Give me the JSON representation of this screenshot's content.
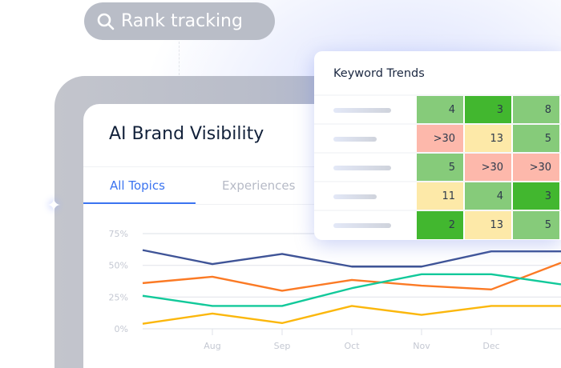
{
  "search_pill": {
    "label": "Rank tracking",
    "icon": "search-icon"
  },
  "visibility_card": {
    "title": "AI Brand Visibility",
    "tabs": [
      {
        "label": "All Topics",
        "active": true
      },
      {
        "label": "Experiences",
        "active": false
      }
    ]
  },
  "keyword_trends": {
    "title": "Keyword Trends",
    "colors": {
      "dark_green": "#42b72f",
      "light_green": "#86cb7a",
      "yellow": "#fde9a8",
      "red": "#fdb8ab"
    },
    "rows": [
      {
        "cells": [
          {
            "v": "4",
            "c": "light_green"
          },
          {
            "v": "3",
            "c": "dark_green"
          },
          {
            "v": "8",
            "c": "light_green"
          }
        ]
      },
      {
        "cells": [
          {
            "v": ">30",
            "c": "red"
          },
          {
            "v": "13",
            "c": "yellow"
          },
          {
            "v": "5",
            "c": "light_green"
          }
        ]
      },
      {
        "cells": [
          {
            "v": "5",
            "c": "light_green"
          },
          {
            "v": ">30",
            "c": "red"
          },
          {
            "v": ">30",
            "c": "red"
          }
        ]
      },
      {
        "cells": [
          {
            "v": "11",
            "c": "yellow"
          },
          {
            "v": "4",
            "c": "light_green"
          },
          {
            "v": "3",
            "c": "dark_green"
          }
        ]
      },
      {
        "cells": [
          {
            "v": "2",
            "c": "dark_green"
          },
          {
            "v": "13",
            "c": "yellow"
          },
          {
            "v": "5",
            "c": "light_green"
          }
        ]
      }
    ]
  },
  "chart_data": {
    "type": "line",
    "categories": [
      "",
      "Aug",
      "Sep",
      "Oct",
      "Nov",
      "Dec",
      ""
    ],
    "yticks": [
      "0%",
      "25%",
      "50%",
      "75%"
    ],
    "ylim": [
      0,
      75
    ],
    "grid": true,
    "series": [
      {
        "color": "#3f5497",
        "values": [
          62,
          51,
          59,
          49,
          49,
          61,
          61
        ]
      },
      {
        "color": "#fb7a25",
        "values": [
          36,
          41,
          30,
          38.5,
          34,
          31,
          52
        ]
      },
      {
        "color": "#12c99a",
        "values": [
          26,
          18,
          18,
          32,
          43,
          43,
          35
        ]
      },
      {
        "color": "#fbb70c",
        "values": [
          4,
          12,
          4.5,
          18,
          11,
          18,
          18
        ]
      }
    ]
  }
}
